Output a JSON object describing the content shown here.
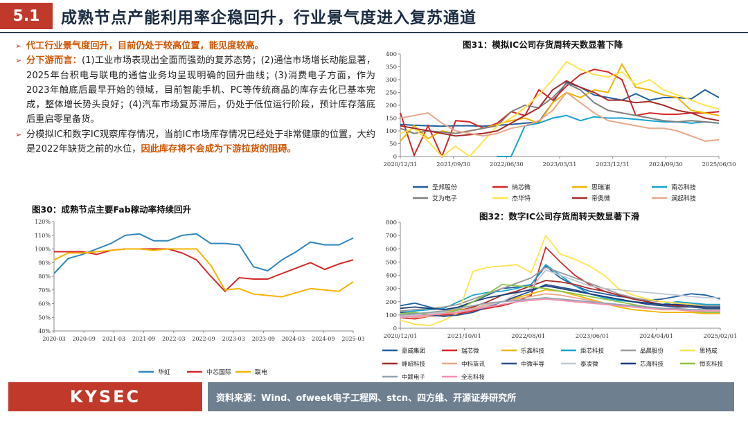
{
  "header": {
    "section": "5.1",
    "title": "成熟节点产能利用率企稳回升，行业景气度进入复苏通道"
  },
  "bullets": {
    "b1": "代工行业景气度回升，目前仍处于较高位置，能见度较高。",
    "b2_head": "分下游而言：",
    "b2_body": "(1)工业市场表现出全面而强劲的复苏态势；(2)通信市场增长动能显著，2025年台积电与联电的通信业务均呈现明确的回升曲线；(3)消费电子方面，作为2023年触底后最早开始的领域，目前智能手机、PC等传统商品的库存去化已基本完成，整体增长势头良好；(4)汽车市场复苏滞后，仍处于低位运行阶段，预计库存落底后重启零星备货。",
    "b3_body": "分模拟IC和数字IC观察库存情况，当前IC市场库存情况已经处于非常健康的位置，大约是2022年缺货之前的水位，",
    "b3_red": "因此库存将不会成为下游拉货的阻碍。"
  },
  "chart_data": [
    {
      "id": "fig30",
      "type": "line",
      "title": "图30：成熟节点主要Fab稼动率持续回升",
      "categories": [
        "2020-03",
        "2020-06",
        "2020-09",
        "2020-12",
        "2021-03",
        "2021-06",
        "2021-09",
        "2021-12",
        "2022-03",
        "2022-06",
        "2022-09",
        "2022-12",
        "2023-03",
        "2023-06",
        "2023-09",
        "2023-12",
        "2024-03",
        "2024-06",
        "2024-09",
        "2024-12",
        "2025-03",
        "2025-06"
      ],
      "xticks": [
        "2020-03",
        "2020-09",
        "2021-03",
        "2021-09",
        "2022-03",
        "2022-09",
        "2023-03",
        "2023-09",
        "2024-03",
        "2024-09",
        "2025-03"
      ],
      "yticks": [
        "40%",
        "50%",
        "60%",
        "70%",
        "80%",
        "90%",
        "100%",
        "110%",
        "120%"
      ],
      "ylim": [
        40,
        120
      ],
      "series": [
        {
          "name": "华虹",
          "color": "#2e86c1",
          "values": [
            82,
            93,
            96,
            100,
            104,
            110,
            111,
            106,
            106,
            110,
            111,
            104,
            104,
            103,
            87,
            84,
            92,
            98,
            105,
            103,
            103,
            108
          ]
        },
        {
          "name": "中芯国际",
          "color": "#d62728",
          "values": [
            98,
            98,
            98,
            96,
            99,
            100,
            100,
            100,
            100,
            97,
            92,
            80,
            69,
            79,
            78,
            78,
            82,
            86,
            90,
            85,
            89,
            92
          ]
        },
        {
          "name": "联电",
          "color": "#f5b400",
          "values": [
            92,
            97,
            97,
            98,
            99,
            100,
            100,
            99,
            100,
            100,
            100,
            88,
            70,
            71,
            67,
            66,
            65,
            68,
            71,
            70,
            69,
            76
          ]
        }
      ]
    },
    {
      "id": "fig31",
      "type": "line",
      "title": "图31：模拟IC公司存货周转天数显著下降",
      "xticks": [
        "2020/12/31",
        "2021/09/30",
        "2022/06/30",
        "2023/03/31",
        "2023/12/31",
        "2024/09/30",
        "2025/06/30"
      ],
      "yticks": [
        "0",
        "50",
        "100",
        "150",
        "200",
        "250",
        "300",
        "350",
        "400"
      ],
      "ylim": [
        0,
        400
      ],
      "series": [
        {
          "name": "圣邦股份",
          "color": "#1f5f9e",
          "values": [
            125,
            122,
            120,
            118,
            120,
            120,
            118,
            122,
            125,
            130,
            135,
            210,
            290,
            270,
            240,
            230,
            220,
            245,
            220,
            230,
            230,
            225,
            260,
            230
          ]
        },
        {
          "name": "纳芯微",
          "color": "#d62728",
          "values": [
            170,
            5,
            120,
            0,
            140,
            135,
            110,
            130,
            175,
            160,
            260,
            220,
            275,
            320,
            340,
            330,
            300,
            160,
            170,
            165,
            165,
            170,
            170,
            175
          ]
        },
        {
          "name": "思瑞浦",
          "color": "#f0b400",
          "values": [
            60,
            120,
            70,
            100,
            90,
            100,
            110,
            125,
            140,
            150,
            130,
            210,
            250,
            230,
            260,
            250,
            360,
            270,
            260,
            240,
            230,
            180,
            170,
            160
          ]
        },
        {
          "name": "南芯科技",
          "color": "#17a2cf",
          "values": [
            null,
            null,
            null,
            null,
            null,
            null,
            null,
            0,
            0,
            120,
            130,
            150,
            160,
            140,
            155,
            150,
            150,
            145,
            140,
            135,
            135,
            130,
            135,
            130
          ]
        },
        {
          "name": "艾为电子",
          "color": "#7f7f7f",
          "values": [
            110,
            90,
            100,
            95,
            90,
            100,
            110,
            120,
            175,
            200,
            190,
            230,
            285,
            260,
            210,
            180,
            170,
            160,
            150,
            140,
            135,
            140,
            135,
            130
          ]
        },
        {
          "name": "杰华特",
          "color": "#ffe44d",
          "values": [
            90,
            110,
            60,
            0,
            40,
            0,
            60,
            120,
            150,
            190,
            240,
            300,
            370,
            340,
            320,
            310,
            330,
            280,
            300,
            260,
            240,
            220,
            200,
            185
          ]
        },
        {
          "name": "帝奥微",
          "color": "#a52a2a",
          "values": [
            120,
            110,
            100,
            90,
            80,
            85,
            90,
            100,
            130,
            160,
            190,
            260,
            295,
            270,
            250,
            220,
            220,
            210,
            215,
            200,
            180,
            170,
            150,
            140
          ]
        },
        {
          "name": "澜起科技",
          "color": "#e8a88a",
          "values": [
            150,
            160,
            170,
            130,
            100,
            90,
            80,
            90,
            110,
            120,
            140,
            180,
            250,
            210,
            170,
            140,
            130,
            120,
            110,
            110,
            100,
            80,
            60,
            65
          ]
        }
      ]
    },
    {
      "id": "fig32",
      "type": "line",
      "title": "图32：数字IC公司存货周转天数显著下滑",
      "xticks": [
        "2020/12/01",
        "2021/10/01",
        "2022/08/01",
        "2023/06/01",
        "2024/04/01",
        "2025/02/01"
      ],
      "yticks": [
        "0",
        "100",
        "200",
        "300",
        "400",
        "500",
        "600",
        "700",
        "800"
      ],
      "ylim": [
        0,
        800
      ],
      "series": [
        {
          "name": "豪威集团",
          "color": "#1f5f9e",
          "values": [
            170,
            190,
            160,
            140,
            150,
            200,
            250,
            300,
            310,
            330,
            470,
            380,
            320,
            280,
            260,
            240,
            230,
            210,
            220,
            240,
            260,
            250,
            220
          ]
        },
        {
          "name": "瑞芯微",
          "color": "#d62728",
          "values": [
            80,
            70,
            90,
            100,
            110,
            130,
            150,
            170,
            200,
            250,
            610,
            500,
            400,
            330,
            280,
            250,
            220,
            200,
            180,
            170,
            180,
            160,
            150
          ]
        },
        {
          "name": "乐鑫科技",
          "color": "#f0b400",
          "values": [
            100,
            110,
            120,
            130,
            140,
            150,
            170,
            200,
            230,
            260,
            290,
            280,
            250,
            220,
            190,
            160,
            140,
            130,
            120,
            120,
            120,
            110,
            110
          ]
        },
        {
          "name": "炬芯科技",
          "color": "#17a2cf",
          "values": [
            120,
            130,
            140,
            150,
            200,
            250,
            270,
            280,
            300,
            330,
            480,
            400,
            320,
            260,
            230,
            210,
            200,
            190,
            180,
            200,
            190,
            180,
            180
          ]
        },
        {
          "name": "晶晨股份",
          "color": "#9a9a9a",
          "values": [
            130,
            140,
            150,
            160,
            180,
            220,
            260,
            300,
            340,
            380,
            460,
            420,
            380,
            340,
            300,
            260,
            230,
            210,
            200,
            190,
            180,
            170,
            170
          ]
        },
        {
          "name": "思特威",
          "color": "#ffe44d",
          "values": [
            60,
            30,
            20,
            60,
            120,
            430,
            460,
            470,
            480,
            420,
            700,
            560,
            520,
            470,
            400,
            300,
            250,
            220,
            200,
            190,
            180,
            160,
            150
          ]
        },
        {
          "name": "峰岹科技",
          "color": "#a52a2a",
          "values": [
            90,
            100,
            110,
            120,
            130,
            160,
            200,
            250,
            280,
            320,
            360,
            350,
            330,
            300,
            280,
            250,
            220,
            200,
            180,
            170,
            160,
            150,
            140
          ]
        },
        {
          "name": "中科蓝讯",
          "color": "#e8a88a",
          "values": [
            100,
            80,
            90,
            110,
            130,
            150,
            180,
            200,
            220,
            240,
            260,
            250,
            230,
            210,
            190,
            170,
            160,
            150,
            140,
            140,
            130,
            130,
            130
          ]
        },
        {
          "name": "中微半导",
          "color": "#2a4f8a",
          "values": [
            120,
            110,
            100,
            90,
            100,
            120,
            160,
            200,
            240,
            280,
            330,
            310,
            290,
            260,
            240,
            220,
            200,
            180,
            170,
            160,
            160,
            150,
            150
          ]
        },
        {
          "name": "泰凌微",
          "color": "#bfc7d5",
          "values": [
            90,
            100,
            110,
            120,
            130,
            140,
            170,
            200,
            260,
            300,
            440,
            400,
            360,
            320,
            300,
            290,
            280,
            270,
            260,
            250,
            240,
            230,
            230
          ]
        },
        {
          "name": "芯海科技",
          "color": "#1a3d7a",
          "values": [
            150,
            160,
            150,
            140,
            160,
            200,
            230,
            250,
            270,
            290,
            320,
            300,
            280,
            260,
            240,
            220,
            200,
            190,
            180,
            180,
            170,
            160,
            160
          ]
        },
        {
          "name": "恒玄科技",
          "color": "#8bc34a",
          "values": [
            110,
            120,
            100,
            110,
            140,
            200,
            260,
            330,
            320,
            310,
            300,
            280,
            260,
            240,
            220,
            200,
            180,
            160,
            150,
            140,
            130,
            120,
            120
          ]
        },
        {
          "name": "中颖电子",
          "color": "#90a4ae",
          "values": [
            100,
            110,
            120,
            130,
            150,
            170,
            190,
            200,
            210,
            220,
            230,
            220,
            210,
            200,
            190,
            180,
            170,
            160,
            150,
            150,
            140,
            140,
            140
          ]
        },
        {
          "name": "全志科技",
          "color": "#f48fb1",
          "values": [
            80,
            90,
            100,
            110,
            120,
            140,
            160,
            180,
            200,
            210,
            220,
            210,
            200,
            190,
            180,
            170,
            160,
            150,
            140,
            140,
            130,
            130,
            130
          ]
        }
      ]
    }
  ],
  "footer": {
    "logo": "KYSEC",
    "source": "资料来源：Wind、ofweek电子工程网、stcn、四方维、开源证券研究所"
  },
  "colors": {
    "accent": "#c0392b",
    "footer_grey": "#6e7f8f",
    "highlight": "#d35400"
  }
}
